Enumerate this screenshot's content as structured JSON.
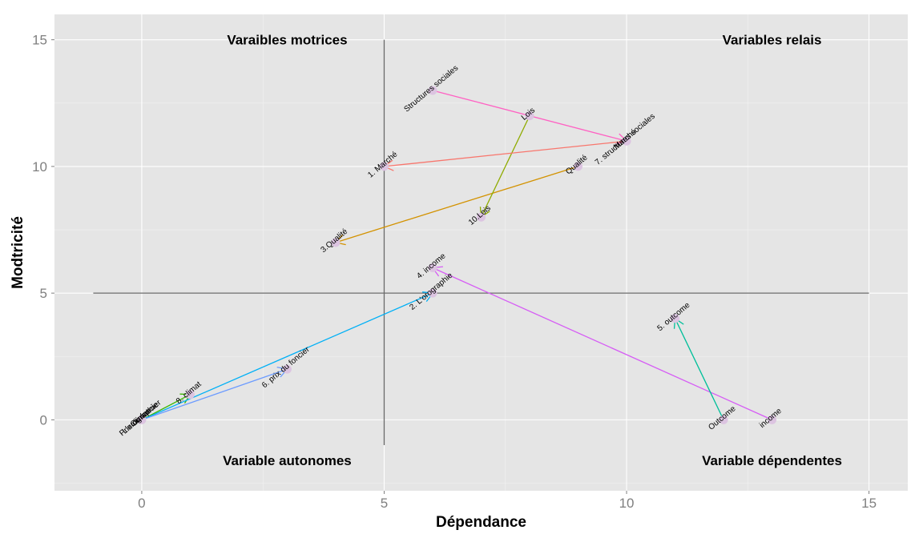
{
  "chart_data": {
    "type": "scatter",
    "title": "",
    "xlabel": "Dépendance",
    "ylabel": "Modtricité",
    "xlim": [
      -1.8,
      15.8
    ],
    "ylim": [
      -2.8,
      16.0
    ],
    "xticks": [
      0,
      5,
      10,
      15
    ],
    "yticks": [
      0,
      5,
      10,
      15
    ],
    "grid": true,
    "reference_lines": {
      "vertical_x": 5,
      "vertical_range": [
        -1,
        15
      ],
      "horizontal_y": 5,
      "horizontal_range": [
        -1,
        15
      ]
    },
    "quadrant_labels": [
      {
        "text": "Varaibles motrices",
        "x": 3,
        "y": 15
      },
      {
        "text": "Variables relais",
        "x": 13,
        "y": 15
      },
      {
        "text": "Variable autonomes",
        "x": 3,
        "y": -1.6
      },
      {
        "text": "Variable dépendentes",
        "x": 13,
        "y": -1.6
      }
    ],
    "series": [
      {
        "name": "climat",
        "color": "#39b600",
        "from": {
          "x": 0,
          "y": 0,
          "label": "Climat"
        },
        "to": {
          "x": 1,
          "y": 1,
          "label": "8. climat"
        }
      },
      {
        "name": "lorographie",
        "color": "#00b0f6",
        "from": {
          "x": 0,
          "y": 0,
          "label": "L'orographie"
        },
        "to": {
          "x": 6,
          "y": 5,
          "label": "2. L'orographie"
        }
      },
      {
        "name": "prix du foncier",
        "color": "#6b9bff",
        "from": {
          "x": 0,
          "y": 0,
          "label": "Prix du foncier"
        },
        "to": {
          "x": 3,
          "y": 2,
          "label": "6. prix du foncier"
        }
      },
      {
        "name": "income",
        "color": "#d65cf5",
        "from": {
          "x": 13,
          "y": 0,
          "label": "income"
        },
        "to": {
          "x": 6,
          "y": 6,
          "label": "4. income"
        }
      },
      {
        "name": "outcome",
        "color": "#00bf9a",
        "from": {
          "x": 12,
          "y": 0,
          "label": "Outcome"
        },
        "to": {
          "x": 11,
          "y": 4,
          "label": "5. outcome"
        }
      },
      {
        "name": "qualite",
        "color": "#d39200",
        "from": {
          "x": 9,
          "y": 10,
          "label": "Qualité"
        },
        "to": {
          "x": 4,
          "y": 7,
          "label": "3.Qualité"
        }
      },
      {
        "name": "lois",
        "color": "#8fab00",
        "from": {
          "x": 8,
          "y": 12,
          "label": "Lois"
        },
        "to": {
          "x": 7,
          "y": 8,
          "label": "10.Lois"
        }
      },
      {
        "name": "marche",
        "color": "#f8766d",
        "from": {
          "x": 10,
          "y": 11,
          "label": "Marché"
        },
        "to": {
          "x": 5,
          "y": 10,
          "label": "1. Marché"
        }
      },
      {
        "name": "structures sociales",
        "color": "#ff61c3",
        "from": {
          "x": 6,
          "y": 13,
          "label": "Structures sociales"
        },
        "to": {
          "x": 10,
          "y": 11,
          "label": "7. structures sociales"
        }
      }
    ]
  }
}
